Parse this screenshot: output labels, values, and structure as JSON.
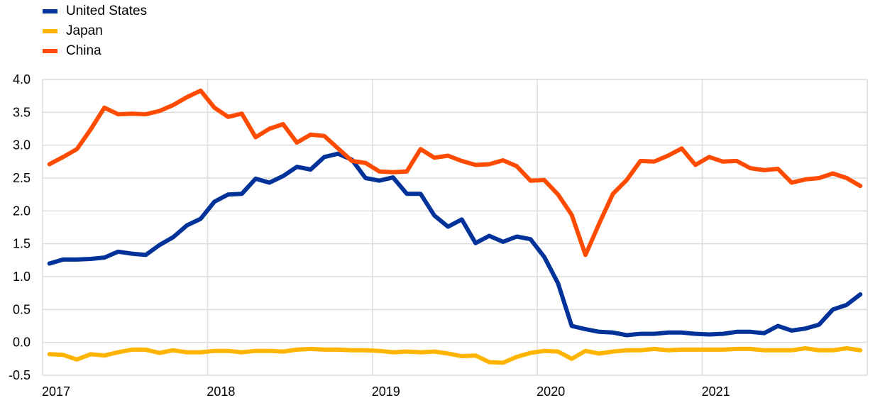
{
  "chart_data": {
    "type": "line",
    "title": "",
    "xlabel": "",
    "ylabel": "",
    "ylim": [
      -0.5,
      4.0
    ],
    "yticks": [
      "4.0",
      "3.5",
      "3.0",
      "2.5",
      "2.0",
      "1.5",
      "1.0",
      "0.5",
      "0.0",
      "-0.5"
    ],
    "ytick_values": [
      4.0,
      3.5,
      3.0,
      2.5,
      2.0,
      1.5,
      1.0,
      0.5,
      0.0,
      -0.5
    ],
    "xticks": [
      "2017",
      "2018",
      "2019",
      "2020",
      "2021"
    ],
    "x_start": "2017-01",
    "x_end": "2021-12",
    "x_frequency": "monthly",
    "grid": true,
    "legend_position": "top-left",
    "series": [
      {
        "name": "United States",
        "color": "#003299",
        "values": [
          1.2,
          1.26,
          1.26,
          1.27,
          1.29,
          1.38,
          1.35,
          1.33,
          1.48,
          1.6,
          1.78,
          1.88,
          2.14,
          2.25,
          2.26,
          2.49,
          2.43,
          2.53,
          2.67,
          2.63,
          2.82,
          2.87,
          2.78,
          2.5,
          2.46,
          2.51,
          2.26,
          2.26,
          1.93,
          1.76,
          1.87,
          1.51,
          1.62,
          1.53,
          1.61,
          1.57,
          1.3,
          0.9,
          0.25,
          0.2,
          0.16,
          0.15,
          0.11,
          0.13,
          0.13,
          0.15,
          0.15,
          0.13,
          0.12,
          0.13,
          0.16,
          0.16,
          0.14,
          0.25,
          0.18,
          0.21,
          0.27,
          0.5,
          0.57,
          0.73
        ]
      },
      {
        "name": "Japan",
        "color": "#FFB400",
        "values": [
          -0.18,
          -0.19,
          -0.26,
          -0.18,
          -0.2,
          -0.15,
          -0.11,
          -0.11,
          -0.16,
          -0.12,
          -0.15,
          -0.15,
          -0.13,
          -0.13,
          -0.15,
          -0.13,
          -0.13,
          -0.14,
          -0.11,
          -0.1,
          -0.11,
          -0.11,
          -0.12,
          -0.12,
          -0.13,
          -0.15,
          -0.14,
          -0.15,
          -0.14,
          -0.17,
          -0.21,
          -0.2,
          -0.3,
          -0.31,
          -0.22,
          -0.16,
          -0.13,
          -0.14,
          -0.25,
          -0.13,
          -0.17,
          -0.14,
          -0.12,
          -0.12,
          -0.1,
          -0.12,
          -0.11,
          -0.11,
          -0.11,
          -0.11,
          -0.1,
          -0.1,
          -0.12,
          -0.12,
          -0.12,
          -0.09,
          -0.12,
          -0.12,
          -0.09,
          -0.12
        ]
      },
      {
        "name": "China",
        "color": "#FF4B00",
        "values": [
          2.71,
          2.82,
          2.94,
          3.24,
          3.57,
          3.47,
          3.48,
          3.47,
          3.52,
          3.61,
          3.73,
          3.83,
          3.57,
          3.43,
          3.48,
          3.12,
          3.25,
          3.32,
          3.04,
          3.16,
          3.14,
          2.95,
          2.76,
          2.73,
          2.6,
          2.59,
          2.6,
          2.94,
          2.81,
          2.84,
          2.76,
          2.7,
          2.71,
          2.77,
          2.68,
          2.46,
          2.47,
          2.25,
          1.94,
          1.33,
          1.81,
          2.26,
          2.47,
          2.76,
          2.75,
          2.84,
          2.95,
          2.7,
          2.82,
          2.75,
          2.76,
          2.65,
          2.62,
          2.64,
          2.43,
          2.48,
          2.5,
          2.57,
          2.5,
          2.38
        ]
      }
    ]
  }
}
